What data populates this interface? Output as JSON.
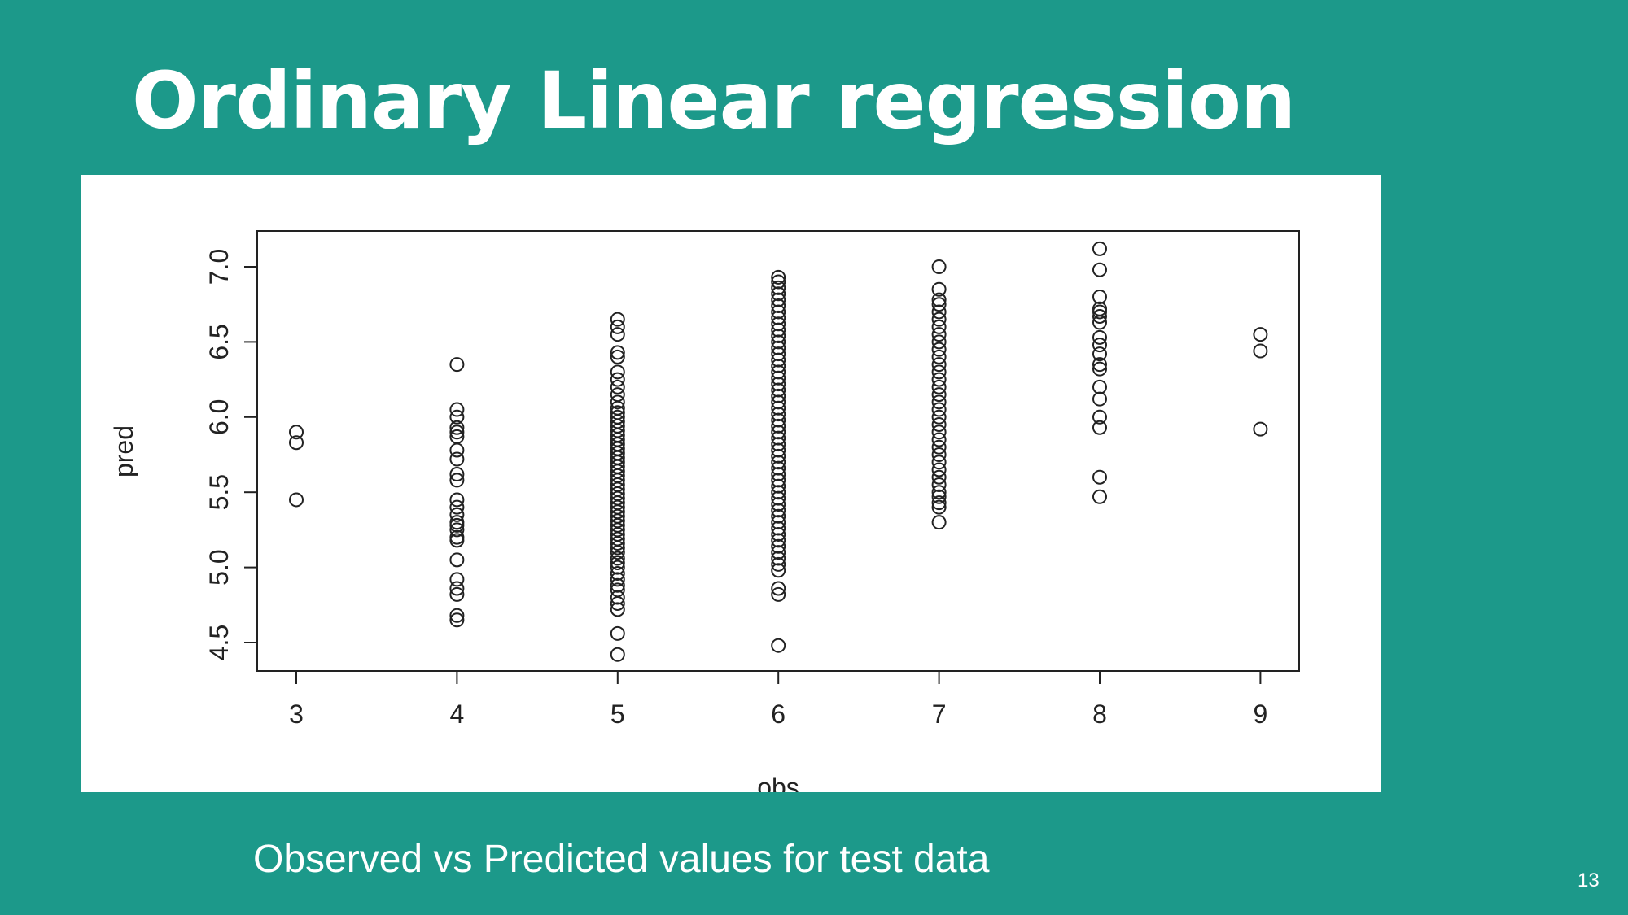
{
  "slide": {
    "title": "Ordinary Linear regression",
    "caption": "Observed vs Predicted values for test data",
    "page_number": "13",
    "background_color": "#1c998a",
    "text_color": "#ffffff"
  },
  "chart_data": {
    "type": "scatter",
    "title": "",
    "xlabel": "obs",
    "ylabel": "pred",
    "xlim": [
      3,
      9
    ],
    "ylim": [
      4.5,
      7.0
    ],
    "xticks": [
      3,
      4,
      5,
      6,
      7,
      8,
      9
    ],
    "yticks": [
      "4.5",
      "5.0",
      "5.5",
      "6.0",
      "6.5",
      "7.0"
    ],
    "grid": false,
    "legend": "none",
    "marker": "open-circle",
    "groups": [
      {
        "x": 3,
        "y": [
          5.45,
          5.83,
          5.9
        ]
      },
      {
        "x": 4,
        "y": [
          4.65,
          4.68,
          4.82,
          4.86,
          4.92,
          5.05,
          5.18,
          5.2,
          5.25,
          5.28,
          5.3,
          5.35,
          5.4,
          5.45,
          5.58,
          5.62,
          5.72,
          5.78,
          5.87,
          5.9,
          5.93,
          6.0,
          6.05,
          6.35
        ]
      },
      {
        "x": 5,
        "y": [
          4.42,
          4.56,
          4.72,
          4.76,
          4.8,
          4.85,
          4.88,
          4.92,
          4.96,
          5.0,
          5.03,
          5.06,
          5.1,
          5.13,
          5.16,
          5.19,
          5.22,
          5.25,
          5.28,
          5.31,
          5.34,
          5.37,
          5.4,
          5.43,
          5.46,
          5.49,
          5.52,
          5.55,
          5.58,
          5.61,
          5.64,
          5.67,
          5.7,
          5.73,
          5.76,
          5.79,
          5.82,
          5.85,
          5.88,
          5.91,
          5.94,
          5.97,
          6.0,
          6.03,
          6.06,
          6.1,
          6.15,
          6.2,
          6.25,
          6.3,
          6.4,
          6.43,
          6.55,
          6.6,
          6.65
        ]
      },
      {
        "x": 6,
        "y": [
          4.48,
          4.82,
          4.86,
          4.98,
          5.02,
          5.06,
          5.1,
          5.14,
          5.18,
          5.22,
          5.26,
          5.3,
          5.34,
          5.38,
          5.42,
          5.46,
          5.5,
          5.54,
          5.58,
          5.62,
          5.66,
          5.7,
          5.74,
          5.78,
          5.82,
          5.86,
          5.9,
          5.94,
          5.98,
          6.02,
          6.06,
          6.1,
          6.14,
          6.18,
          6.22,
          6.26,
          6.3,
          6.34,
          6.38,
          6.42,
          6.46,
          6.5,
          6.54,
          6.58,
          6.62,
          6.66,
          6.7,
          6.74,
          6.78,
          6.82,
          6.86,
          6.9,
          6.93
        ]
      },
      {
        "x": 7,
        "y": [
          5.3,
          5.4,
          5.43,
          5.47,
          5.5,
          5.55,
          5.6,
          5.65,
          5.7,
          5.75,
          5.8,
          5.85,
          5.9,
          5.95,
          6.0,
          6.05,
          6.1,
          6.15,
          6.2,
          6.25,
          6.3,
          6.35,
          6.4,
          6.45,
          6.5,
          6.55,
          6.6,
          6.65,
          6.7,
          6.75,
          6.78,
          6.85,
          7.0
        ]
      },
      {
        "x": 8,
        "y": [
          5.47,
          5.6,
          5.93,
          6.0,
          6.12,
          6.2,
          6.32,
          6.35,
          6.42,
          6.48,
          6.53,
          6.63,
          6.67,
          6.7,
          6.72,
          6.8,
          6.98,
          7.12
        ]
      },
      {
        "x": 9,
        "y": [
          5.92,
          6.44,
          6.55
        ]
      }
    ]
  }
}
